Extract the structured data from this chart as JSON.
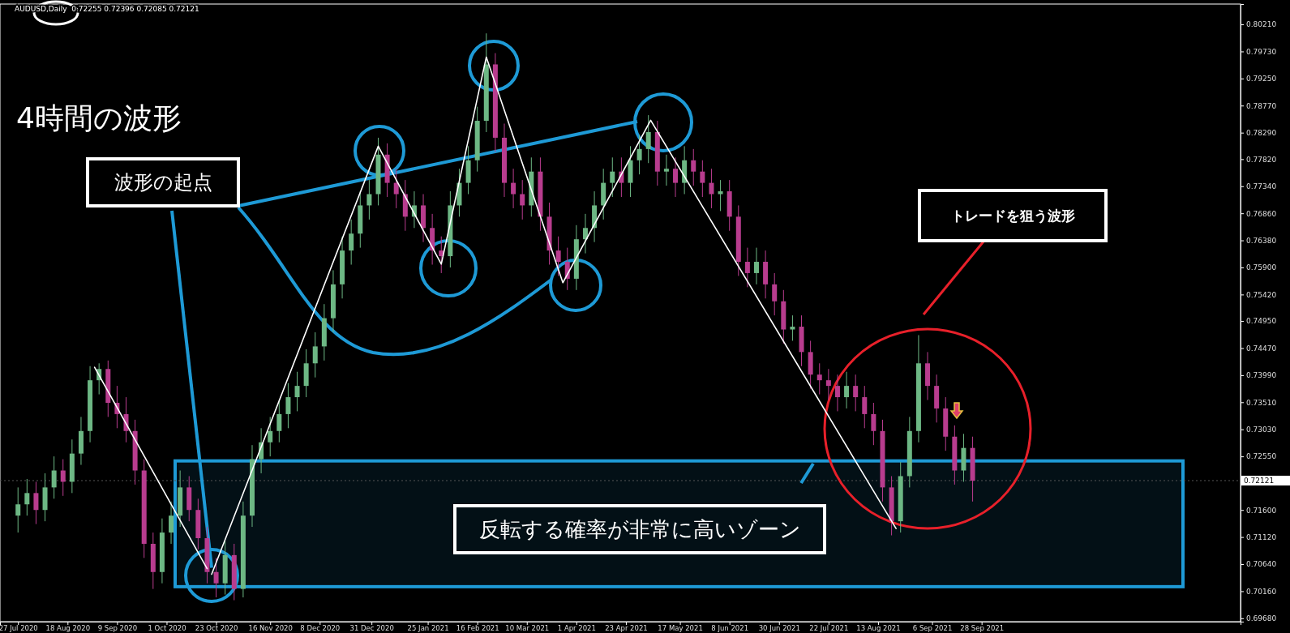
{
  "chart_data": {
    "type": "candlestick",
    "title": "AUDUSD,Daily  0.72255 0.72396 0.72085 0.72121",
    "annotations": [
      "4時間の波形",
      {
        "text": "波形の起点",
        "x": "2020-10-21",
        "y": 0.7046
      },
      "トレードを狙う波形"
    ],
    "x": [
      "2020-07-27",
      "2020-07-31",
      "2020-08-04",
      "2020-08-08",
      "2020-08-12",
      "2020-08-16",
      "2020-08-20",
      "2020-08-24",
      "2020-08-28",
      "2020-09-01",
      "2020-09-05",
      "2020-09-09",
      "2020-09-13",
      "2020-09-17",
      "2020-09-21",
      "2020-09-25",
      "2020-09-29",
      "2020-10-03",
      "2020-10-07",
      "2020-10-11",
      "2020-10-15",
      "2020-10-19",
      "2020-10-23",
      "2020-10-27",
      "2020-10-31",
      "2020-11-04",
      "2020-11-08",
      "2020-11-12",
      "2020-11-16",
      "2020-11-20",
      "2020-11-24",
      "2020-11-28",
      "2020-12-02",
      "2020-12-06",
      "2020-12-10",
      "2020-12-14",
      "2020-12-18",
      "2020-12-22",
      "2020-12-26",
      "2020-12-30",
      "2021-01-03",
      "2021-01-07",
      "2021-01-11",
      "2021-01-15",
      "2021-01-19",
      "2021-01-23",
      "2021-01-27",
      "2021-01-31",
      "2021-02-04",
      "2021-02-08",
      "2021-02-12",
      "2021-02-16",
      "2021-02-20",
      "2021-02-24",
      "2021-02-28",
      "2021-03-04",
      "2021-03-08",
      "2021-03-12",
      "2021-03-16",
      "2021-03-20",
      "2021-03-24",
      "2021-03-28",
      "2021-04-01",
      "2021-04-05",
      "2021-04-09",
      "2021-04-13",
      "2021-04-17",
      "2021-04-21",
      "2021-04-25",
      "2021-04-29",
      "2021-05-03",
      "2021-05-07",
      "2021-05-11",
      "2021-05-15",
      "2021-05-19",
      "2021-05-23",
      "2021-05-27",
      "2021-05-31",
      "2021-06-04",
      "2021-06-08",
      "2021-06-12",
      "2021-06-16",
      "2021-06-20",
      "2021-06-24",
      "2021-06-28",
      "2021-07-02",
      "2021-07-06",
      "2021-07-10",
      "2021-07-14",
      "2021-07-18",
      "2021-07-22",
      "2021-07-26",
      "2021-07-30",
      "2021-08-03",
      "2021-08-07",
      "2021-08-11",
      "2021-08-15",
      "2021-08-19",
      "2021-08-23",
      "2021-08-27",
      "2021-08-31",
      "2021-09-04",
      "2021-09-08",
      "2021-09-12",
      "2021-09-16",
      "2021-09-20",
      "2021-09-24"
    ],
    "ohlc": [
      [
        0.715,
        0.72,
        0.712,
        0.717
      ],
      [
        0.717,
        0.7215,
        0.715,
        0.719
      ],
      [
        0.719,
        0.721,
        0.7135,
        0.716
      ],
      [
        0.716,
        0.7225,
        0.714,
        0.72
      ],
      [
        0.72,
        0.7255,
        0.718,
        0.723
      ],
      [
        0.723,
        0.725,
        0.7185,
        0.721
      ],
      [
        0.721,
        0.7285,
        0.719,
        0.726
      ],
      [
        0.726,
        0.7325,
        0.724,
        0.73
      ],
      [
        0.73,
        0.7415,
        0.728,
        0.739
      ],
      [
        0.739,
        0.742,
        0.7365,
        0.741
      ],
      [
        0.741,
        0.7425,
        0.7325,
        0.735
      ],
      [
        0.735,
        0.738,
        0.7305,
        0.733
      ],
      [
        0.733,
        0.736,
        0.728,
        0.73
      ],
      [
        0.73,
        0.732,
        0.7205,
        0.723
      ],
      [
        0.723,
        0.725,
        0.7075,
        0.71
      ],
      [
        0.71,
        0.712,
        0.702,
        0.705
      ],
      [
        0.705,
        0.7145,
        0.703,
        0.712
      ],
      [
        0.712,
        0.7175,
        0.71,
        0.715
      ],
      [
        0.715,
        0.723,
        0.713,
        0.72
      ],
      [
        0.72,
        0.722,
        0.714,
        0.716
      ],
      [
        0.716,
        0.718,
        0.709,
        0.711
      ],
      [
        0.711,
        0.713,
        0.703,
        0.705
      ],
      [
        0.705,
        0.7075,
        0.7005,
        0.703
      ],
      [
        0.703,
        0.7105,
        0.701,
        0.708
      ],
      [
        0.708,
        0.71,
        0.7,
        0.702
      ],
      [
        0.702,
        0.7175,
        0.7005,
        0.715
      ],
      [
        0.715,
        0.7275,
        0.713,
        0.725
      ],
      [
        0.725,
        0.7305,
        0.7225,
        0.728
      ],
      [
        0.728,
        0.7325,
        0.7255,
        0.73
      ],
      [
        0.73,
        0.7355,
        0.728,
        0.733
      ],
      [
        0.733,
        0.7385,
        0.7305,
        0.736
      ],
      [
        0.736,
        0.7405,
        0.7335,
        0.738
      ],
      [
        0.738,
        0.7445,
        0.736,
        0.742
      ],
      [
        0.742,
        0.7475,
        0.7395,
        0.745
      ],
      [
        0.745,
        0.7525,
        0.7425,
        0.75
      ],
      [
        0.75,
        0.7585,
        0.7475,
        0.756
      ],
      [
        0.756,
        0.7645,
        0.7535,
        0.762
      ],
      [
        0.762,
        0.7675,
        0.7595,
        0.765
      ],
      [
        0.765,
        0.7725,
        0.7625,
        0.77
      ],
      [
        0.77,
        0.7745,
        0.7675,
        0.772
      ],
      [
        0.772,
        0.782,
        0.77,
        0.779
      ],
      [
        0.779,
        0.781,
        0.7715,
        0.774
      ],
      [
        0.774,
        0.7765,
        0.7695,
        0.772
      ],
      [
        0.772,
        0.7745,
        0.7655,
        0.768
      ],
      [
        0.768,
        0.7725,
        0.766,
        0.77
      ],
      [
        0.77,
        0.772,
        0.7635,
        0.766
      ],
      [
        0.766,
        0.7685,
        0.7595,
        0.762
      ],
      [
        0.762,
        0.7645,
        0.758,
        0.761
      ],
      [
        0.761,
        0.7725,
        0.759,
        0.77
      ],
      [
        0.77,
        0.7765,
        0.768,
        0.774
      ],
      [
        0.774,
        0.7805,
        0.772,
        0.778
      ],
      [
        0.778,
        0.7875,
        0.776,
        0.785
      ],
      [
        0.785,
        0.8005,
        0.783,
        0.795
      ],
      [
        0.795,
        0.797,
        0.7795,
        0.782
      ],
      [
        0.782,
        0.7845,
        0.7715,
        0.774
      ],
      [
        0.774,
        0.7765,
        0.7695,
        0.772
      ],
      [
        0.772,
        0.7745,
        0.7675,
        0.77
      ],
      [
        0.77,
        0.7785,
        0.768,
        0.776
      ],
      [
        0.776,
        0.7785,
        0.7655,
        0.768
      ],
      [
        0.768,
        0.7705,
        0.7595,
        0.762
      ],
      [
        0.762,
        0.7645,
        0.7575,
        0.76
      ],
      [
        0.76,
        0.7625,
        0.755,
        0.757
      ],
      [
        0.757,
        0.7665,
        0.755,
        0.764
      ],
      [
        0.764,
        0.7685,
        0.7615,
        0.766
      ],
      [
        0.766,
        0.7725,
        0.7635,
        0.77
      ],
      [
        0.77,
        0.7765,
        0.7675,
        0.774
      ],
      [
        0.774,
        0.7785,
        0.7715,
        0.776
      ],
      [
        0.776,
        0.7785,
        0.7715,
        0.774
      ],
      [
        0.774,
        0.7805,
        0.7715,
        0.778
      ],
      [
        0.778,
        0.7825,
        0.7755,
        0.78
      ],
      [
        0.78,
        0.786,
        0.7775,
        0.783
      ],
      [
        0.783,
        0.785,
        0.7735,
        0.776
      ],
      [
        0.776,
        0.779,
        0.7735,
        0.7765
      ],
      [
        0.7765,
        0.7785,
        0.7715,
        0.774
      ],
      [
        0.774,
        0.7805,
        0.772,
        0.778
      ],
      [
        0.778,
        0.78,
        0.7735,
        0.776
      ],
      [
        0.776,
        0.778,
        0.7715,
        0.774
      ],
      [
        0.774,
        0.7765,
        0.7695,
        0.772
      ],
      [
        0.772,
        0.7745,
        0.769,
        0.7725
      ],
      [
        0.7725,
        0.7745,
        0.7655,
        0.768
      ],
      [
        0.768,
        0.77,
        0.7575,
        0.76
      ],
      [
        0.76,
        0.7625,
        0.7555,
        0.758
      ],
      [
        0.758,
        0.7625,
        0.756,
        0.76
      ],
      [
        0.76,
        0.762,
        0.7535,
        0.756
      ],
      [
        0.756,
        0.758,
        0.7505,
        0.753
      ],
      [
        0.753,
        0.755,
        0.7455,
        0.748
      ],
      [
        0.748,
        0.7505,
        0.746,
        0.7485
      ],
      [
        0.7485,
        0.7505,
        0.7415,
        0.744
      ],
      [
        0.744,
        0.746,
        0.7375,
        0.74
      ],
      [
        0.74,
        0.742,
        0.7365,
        0.739
      ],
      [
        0.739,
        0.741,
        0.7355,
        0.738
      ],
      [
        0.738,
        0.74,
        0.7335,
        0.736
      ],
      [
        0.736,
        0.7405,
        0.734,
        0.738
      ],
      [
        0.738,
        0.74,
        0.7335,
        0.736
      ],
      [
        0.736,
        0.738,
        0.7305,
        0.733
      ],
      [
        0.733,
        0.735,
        0.7275,
        0.73
      ],
      [
        0.73,
        0.732,
        0.7175,
        0.72
      ],
      [
        0.72,
        0.722,
        0.7115,
        0.714
      ],
      [
        0.714,
        0.7245,
        0.712,
        0.722
      ],
      [
        0.722,
        0.7325,
        0.72,
        0.73
      ],
      [
        0.73,
        0.747,
        0.728,
        0.742
      ],
      [
        0.742,
        0.744,
        0.7355,
        0.738
      ],
      [
        0.738,
        0.74,
        0.7315,
        0.734
      ],
      [
        0.734,
        0.736,
        0.7265,
        0.729
      ],
      [
        0.729,
        0.731,
        0.7205,
        0.723
      ],
      [
        0.723,
        0.7295,
        0.721,
        0.727
      ],
      [
        0.727,
        0.729,
        0.7175,
        0.7212
      ]
    ],
    "colors": [
      "#6db784",
      "#6db784",
      "#b83c8e",
      "#6db784",
      "#6db784",
      "#b83c8e",
      "#6db784",
      "#6db784",
      "#6db784",
      "#6db784",
      "#b83c8e",
      "#b83c8e",
      "#b83c8e",
      "#b83c8e",
      "#b83c8e",
      "#b83c8e",
      "#6db784",
      "#6db784",
      "#6db784",
      "#b83c8e",
      "#b83c8e",
      "#b83c8e",
      "#b83c8e",
      "#6db784",
      "#b83c8e",
      "#6db784",
      "#6db784",
      "#6db784",
      "#6db784",
      "#6db784",
      "#6db784",
      "#6db784",
      "#6db784",
      "#6db784",
      "#6db784",
      "#6db784",
      "#6db784",
      "#6db784",
      "#6db784",
      "#6db784",
      "#6db784",
      "#b83c8e",
      "#b83c8e",
      "#b83c8e",
      "#6db784",
      "#b83c8e",
      "#b83c8e",
      "#b83c8e",
      "#6db784",
      "#6db784",
      "#6db784",
      "#6db784",
      "#6db784",
      "#b83c8e",
      "#b83c8e",
      "#b83c8e",
      "#b83c8e",
      "#6db784",
      "#b83c8e",
      "#b83c8e",
      "#b83c8e",
      "#b83c8e",
      "#6db784",
      "#6db784",
      "#6db784",
      "#6db784",
      "#6db784",
      "#b83c8e",
      "#6db784",
      "#6db784",
      "#6db784",
      "#b83c8e",
      "#6db784",
      "#b83c8e",
      "#6db784",
      "#b83c8e",
      "#b83c8e",
      "#b83c8e",
      "#6db784",
      "#b83c8e",
      "#b83c8e",
      "#b83c8e",
      "#6db784",
      "#b83c8e",
      "#b83c8e",
      "#b83c8e",
      "#6db784",
      "#b83c8e",
      "#b83c8e",
      "#b83c8e",
      "#b83c8e",
      "#b83c8e",
      "#6db784",
      "#b83c8e",
      "#b83c8e",
      "#b83c8e",
      "#b83c8e",
      "#b83c8e",
      "#6db784",
      "#6db784",
      "#6db784",
      "#b83c8e",
      "#b83c8e",
      "#b83c8e",
      "#b83c8e",
      "#6db784",
      "#b83c8e"
    ],
    "series": [
      {
        "type": "line",
        "color": "#ffffff",
        "x": [
          "2020-08-30",
          "2020-10-19"
        ],
        "values": [
          0.7413,
          0.7056
        ]
      },
      {
        "type": "line",
        "color": "#ffffff",
        "x": [
          "2020-10-21",
          "2021-01-03",
          "2021-01-31",
          "2021-02-20",
          "2021-03-26",
          "2021-05-04",
          "2021-08-21"
        ],
        "values": [
          0.7046,
          0.7805,
          0.7596,
          0.7963,
          0.7563,
          0.7851,
          0.7127
        ]
      }
    ],
    "bands": [
      {
        "axis": "y",
        "from": 0.7024,
        "to": 0.7247,
        "label": "反転する確率が非常に高いゾーン",
        "color": "#1e9ad6"
      }
    ],
    "ref_lines": [
      {
        "axis": "y",
        "value": 0.72121,
        "label": "0.72121"
      }
    ],
    "xlim": [
      "2020-07-19",
      "2022-01-21"
    ],
    "xticks": [
      {
        "value": "2020-07-27",
        "label": "27 Jul 2020"
      },
      {
        "value": "2020-08-18",
        "label": "18 Aug 2020"
      },
      {
        "value": "2020-09-09",
        "label": "9 Sep 2020"
      },
      {
        "value": "2020-10-01",
        "label": "1 Oct 2020"
      },
      {
        "value": "2020-10-23",
        "label": "23 Oct 2020"
      },
      {
        "value": "2020-11-16",
        "label": "16 Nov 2020"
      },
      {
        "value": "2020-12-08",
        "label": "8 Dec 2020"
      },
      {
        "value": "2020-12-31",
        "label": "31 Dec 2020"
      },
      {
        "value": "2021-01-25",
        "label": "25 Jan 2021"
      },
      {
        "value": "2021-02-16",
        "label": "16 Feb 2021"
      },
      {
        "value": "2021-03-10",
        "label": "10 Mar 2021"
      },
      {
        "value": "2021-04-01",
        "label": "1 Apr 2021"
      },
      {
        "value": "2021-04-23",
        "label": "23 Apr 2021"
      },
      {
        "value": "2021-05-17",
        "label": "17 May 2021"
      },
      {
        "value": "2021-06-08",
        "label": "8 Jun 2021"
      },
      {
        "value": "2021-06-30",
        "label": "30 Jun 2021"
      },
      {
        "value": "2021-07-22",
        "label": "22 Jul 2021"
      },
      {
        "value": "2021-08-13",
        "label": "13 Aug 2021"
      },
      {
        "value": "2021-09-06",
        "label": "6 Sep 2021"
      },
      {
        "value": "2021-09-28",
        "label": "28 Sep 2021"
      }
    ],
    "ylim": [
      0.6962,
      0.8057
    ],
    "yticks": [
      {
        "value": 0.8021,
        "label": "0.80210"
      },
      {
        "value": 0.7973,
        "label": "0.79730"
      },
      {
        "value": 0.7925,
        "label": "0.79250"
      },
      {
        "value": 0.7877,
        "label": "0.78770"
      },
      {
        "value": 0.7829,
        "label": "0.78290"
      },
      {
        "value": 0.7782,
        "label": "0.77820"
      },
      {
        "value": 0.7734,
        "label": "0.77340"
      },
      {
        "value": 0.7686,
        "label": "0.76860"
      },
      {
        "value": 0.7638,
        "label": "0.76380"
      },
      {
        "value": 0.759,
        "label": "0.75900"
      },
      {
        "value": 0.7542,
        "label": "0.75420"
      },
      {
        "value": 0.7495,
        "label": "0.74950"
      },
      {
        "value": 0.7447,
        "label": "0.74470"
      },
      {
        "value": 0.7399,
        "label": "0.73990"
      },
      {
        "value": 0.7351,
        "label": "0.73510"
      },
      {
        "value": 0.7303,
        "label": "0.73030"
      },
      {
        "value": 0.7255,
        "label": "0.72550"
      },
      {
        "value": 0.716,
        "label": "0.71600"
      },
      {
        "value": 0.7112,
        "label": "0.71120"
      },
      {
        "value": 0.7064,
        "label": "0.70640"
      },
      {
        "value": 0.7016,
        "label": "0.70160"
      },
      {
        "value": 0.6968,
        "label": "0.69680"
      }
    ]
  }
}
